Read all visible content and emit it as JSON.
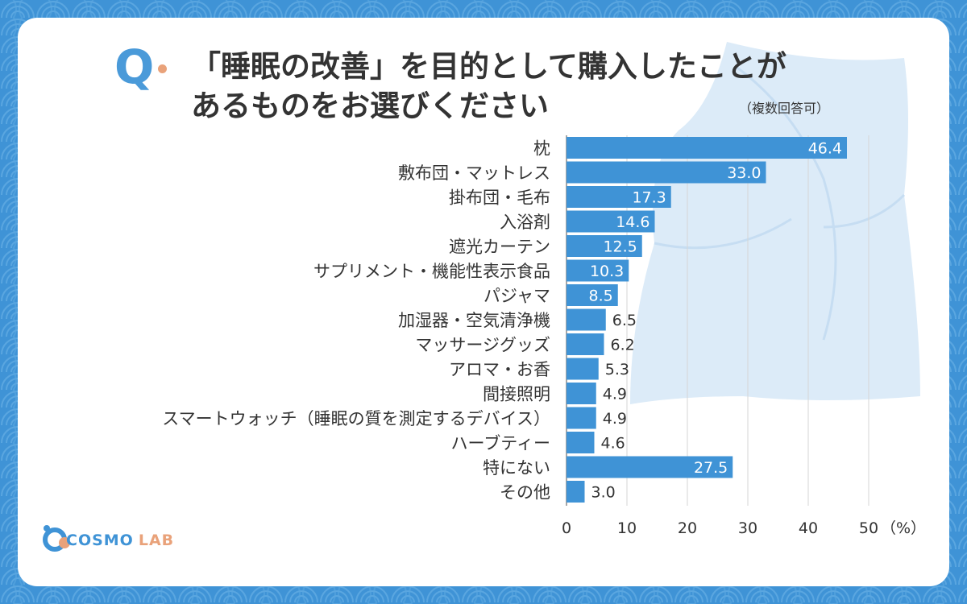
{
  "question": {
    "mark": "Q",
    "line1": "「睡眠の改善」を目的として購入したことが",
    "line2": "あるものをお選びください",
    "note": "（複数回答可）"
  },
  "chart_data": {
    "type": "bar",
    "orientation": "horizontal",
    "categories": [
      "枕",
      "敷布団・マットレス",
      "掛布団・毛布",
      "入浴剤",
      "遮光カーテン",
      "サプリメント・機能性表示食品",
      "パジャマ",
      "加湿器・空気清浄機",
      "マッサージグッズ",
      "アロマ・お香",
      "間接照明",
      "スマートウォッチ（睡眠の質を測定するデバイス）",
      "ハーブティー",
      "特にない",
      "その他"
    ],
    "values": [
      46.4,
      33.0,
      17.3,
      14.6,
      12.5,
      10.3,
      8.5,
      6.5,
      6.2,
      5.3,
      4.9,
      4.9,
      4.6,
      27.5,
      3.0
    ],
    "value_labels": [
      "46.4",
      "33.0",
      "17.3",
      "14.6",
      "12.5",
      "10.3",
      "8.5",
      "6.5",
      "6.2",
      "5.3",
      "4.9",
      "4.9",
      "4.6",
      "27.5",
      "3.0"
    ],
    "xlim": [
      0,
      50
    ],
    "xticks": [
      "0",
      "10",
      "20",
      "30",
      "40",
      "50"
    ],
    "x_unit": "（%）",
    "grid": true,
    "bar_color": "#3f93d6"
  },
  "logo": {
    "part1": "COSMO",
    "part2": "LAB"
  },
  "colors": {
    "accent": "#3f93d6",
    "orange": "#e9a27a",
    "text": "#333333"
  }
}
